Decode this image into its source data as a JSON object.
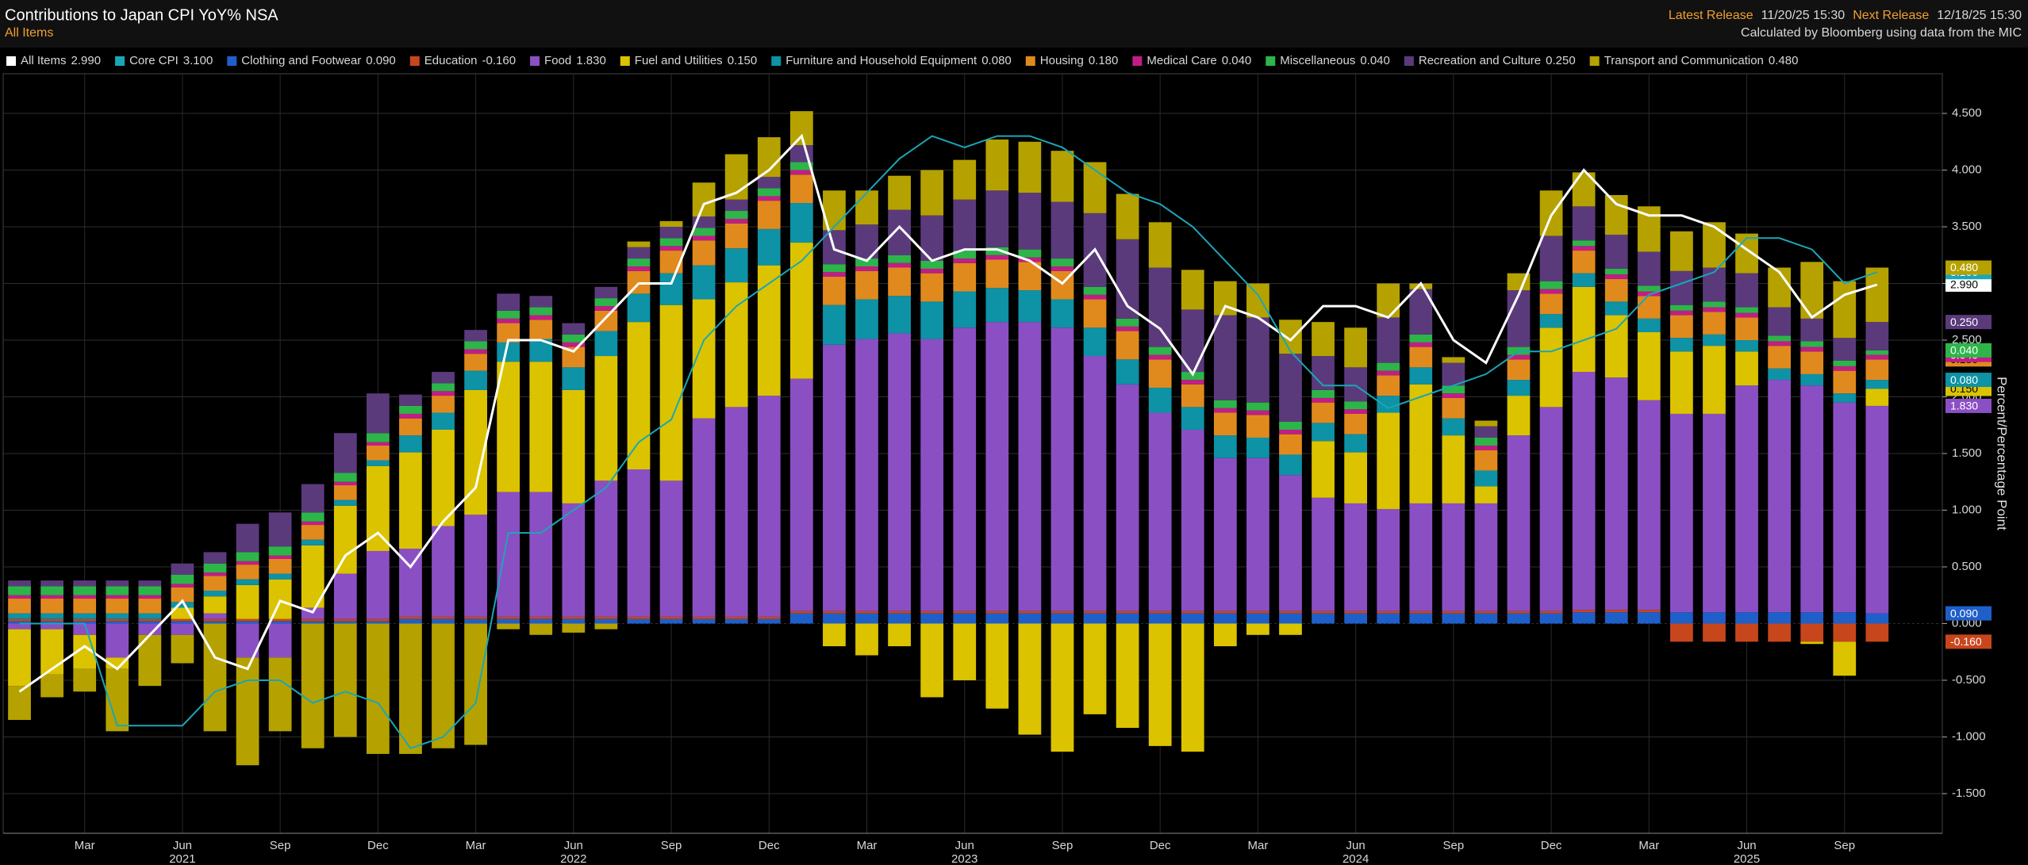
{
  "header": {
    "release_label": "Latest Release",
    "release_date": "11/20/25 15:30",
    "next_label": "Next Release",
    "next_date": "12/18/25 15:30",
    "source": "Calculated by Bloomberg using data from the MIC"
  },
  "chart_data": {
    "type": "stacked_bar",
    "title": "Contributions to Japan CPI YoY% NSA",
    "subtitle": "All Items",
    "y_axis_label": "Percent/Percentage Point",
    "categories": [
      null,
      null,
      "Mar",
      null,
      null,
      "Jun",
      null,
      null,
      "Sep",
      null,
      null,
      "Dec",
      null,
      null,
      "Mar",
      null,
      null,
      "Jun",
      null,
      null,
      "Sep",
      null,
      null,
      "Dec",
      null,
      null,
      "Mar",
      null,
      null,
      "Jun",
      null,
      null,
      "Sep",
      null,
      null,
      "Dec",
      null,
      null,
      "Mar",
      null,
      null,
      "Jun",
      null,
      null,
      "Sep",
      null,
      null,
      "Dec",
      null,
      null,
      "Mar",
      null,
      null,
      "Jun",
      null,
      null,
      "Sep",
      null
    ],
    "years": [
      "2021",
      "2022",
      "2023",
      "2024",
      "2025"
    ],
    "ylim": [
      -1.85,
      4.85
    ],
    "yticks": [
      {
        "value": -1.5,
        "label": "-1.500"
      },
      {
        "value": -1,
        "label": "-1.000"
      },
      {
        "value": -0.5,
        "label": "-0.500"
      },
      {
        "value": 0,
        "label": "0.000"
      },
      {
        "value": 0.5,
        "label": "0.500"
      },
      {
        "value": 1,
        "label": "1.000"
      },
      {
        "value": 1.5,
        "label": "1.500"
      },
      {
        "value": 2,
        "label": "2.000"
      },
      {
        "value": 2.5,
        "label": "2.500"
      },
      {
        "value": 3,
        "label": "3.000"
      },
      {
        "value": 3.5,
        "label": "3.500"
      },
      {
        "value": 4,
        "label": "4.000"
      },
      {
        "value": 4.5,
        "label": "4.500"
      }
    ],
    "grid": true,
    "series": [
      {
        "name": "All Items",
        "type": "line",
        "color": "#ffffff",
        "last_label": "2.990",
        "values": [
          -0.6,
          -0.4,
          -0.2,
          -0.4,
          -0.1,
          0.2,
          -0.3,
          -0.4,
          0.2,
          0.1,
          0.6,
          0.8,
          0.5,
          0.9,
          1.2,
          2.5,
          2.5,
          2.4,
          2.7,
          3.0,
          3.0,
          3.7,
          3.8,
          4.0,
          4.3,
          3.3,
          3.2,
          3.5,
          3.2,
          3.3,
          3.3,
          3.2,
          3.0,
          3.3,
          2.8,
          2.6,
          2.2,
          2.8,
          2.7,
          2.5,
          2.8,
          2.8,
          2.7,
          3.0,
          2.5,
          2.3,
          2.9,
          3.6,
          4.0,
          3.7,
          3.6,
          3.6,
          3.5,
          3.3,
          3.1,
          2.7,
          2.9,
          2.99
        ]
      },
      {
        "name": "Core CPI",
        "type": "line",
        "color": "#1aa6b7",
        "last_label": "3.100",
        "values": [
          0.0,
          0.0,
          0.0,
          -0.9,
          -0.9,
          -0.9,
          -0.6,
          -0.5,
          -0.5,
          -0.7,
          -0.6,
          -0.7,
          -1.1,
          -1.0,
          -0.7,
          0.8,
          0.8,
          1.0,
          1.2,
          1.6,
          1.8,
          2.5,
          2.8,
          3.0,
          3.2,
          3.5,
          3.8,
          4.1,
          4.3,
          4.2,
          4.3,
          4.3,
          4.2,
          4.0,
          3.8,
          3.7,
          3.5,
          3.2,
          2.9,
          2.4,
          2.1,
          2.1,
          1.9,
          2.0,
          2.1,
          2.2,
          2.4,
          2.4,
          2.5,
          2.6,
          2.9,
          3.0,
          3.1,
          3.4,
          3.4,
          3.3,
          3.0,
          3.1
        ]
      },
      {
        "name": "Clothing and Footwear",
        "color": "#1f5fc9",
        "last_label": "0.090",
        "values": [
          0.02,
          0.02,
          0.02,
          0.02,
          0.02,
          0.02,
          0.02,
          0.02,
          0.02,
          0.02,
          0.02,
          0.02,
          0.04,
          0.04,
          0.04,
          0.04,
          0.04,
          0.04,
          0.04,
          0.04,
          0.04,
          0.04,
          0.04,
          0.04,
          0.09,
          0.09,
          0.09,
          0.09,
          0.09,
          0.09,
          0.09,
          0.09,
          0.09,
          0.09,
          0.09,
          0.09,
          0.09,
          0.09,
          0.09,
          0.09,
          0.09,
          0.09,
          0.09,
          0.09,
          0.09,
          0.09,
          0.09,
          0.09,
          0.1,
          0.1,
          0.1,
          0.1,
          0.1,
          0.1,
          0.1,
          0.1,
          0.1,
          0.09
        ]
      },
      {
        "name": "Education",
        "color": "#c8461c",
        "last_label": "-0.160",
        "values": [
          0.02,
          0.02,
          0.02,
          0.02,
          0.02,
          0.02,
          0.02,
          0.02,
          0.02,
          0.02,
          0.02,
          0.02,
          0.02,
          0.02,
          0.02,
          0.02,
          0.02,
          0.02,
          0.02,
          0.02,
          0.02,
          0.02,
          0.02,
          0.02,
          0.02,
          0.02,
          0.02,
          0.02,
          0.02,
          0.02,
          0.02,
          0.02,
          0.02,
          0.02,
          0.02,
          0.02,
          0.02,
          0.02,
          0.02,
          0.02,
          0.02,
          0.02,
          0.02,
          0.02,
          0.02,
          0.02,
          0.02,
          0.02,
          0.02,
          0.02,
          0.02,
          -0.16,
          -0.16,
          -0.16,
          -0.16,
          -0.16,
          -0.16,
          -0.16
        ]
      },
      {
        "name": "Food",
        "color": "#8b4fc4",
        "last_label": "1.830",
        "values": [
          -0.05,
          -0.05,
          -0.1,
          -0.3,
          -0.1,
          -0.1,
          0.05,
          -0.3,
          -0.3,
          0.1,
          0.4,
          0.6,
          0.6,
          0.8,
          0.9,
          1.1,
          1.1,
          1.0,
          1.2,
          1.3,
          1.2,
          1.75,
          1.85,
          1.95,
          2.05,
          2.35,
          2.4,
          2.45,
          2.4,
          2.5,
          2.55,
          2.55,
          2.5,
          2.25,
          2.0,
          1.75,
          1.6,
          1.35,
          1.35,
          1.2,
          1.0,
          0.95,
          0.9,
          0.95,
          0.95,
          0.95,
          1.55,
          1.8,
          2.1,
          2.05,
          1.85,
          1.75,
          1.75,
          2.0,
          2.05,
          2.0,
          1.85,
          1.83
        ]
      },
      {
        "name": "Fuel and Utilities",
        "color": "#dcc300",
        "last_label": "0.150",
        "values": [
          -0.5,
          -0.4,
          -0.3,
          -0.1,
          0.0,
          0.1,
          0.15,
          0.3,
          0.35,
          0.55,
          0.6,
          0.75,
          0.85,
          0.85,
          1.1,
          1.15,
          1.15,
          1.0,
          1.1,
          1.3,
          1.55,
          1.05,
          1.1,
          1.15,
          1.2,
          -0.2,
          -0.28,
          -0.2,
          -0.65,
          -0.5,
          -0.75,
          -0.98,
          -1.13,
          -0.8,
          -0.92,
          -1.08,
          -1.13,
          -0.2,
          -0.1,
          -0.1,
          0.5,
          0.45,
          0.85,
          1.05,
          0.6,
          0.15,
          0.35,
          0.7,
          0.75,
          0.55,
          0.6,
          0.55,
          0.6,
          0.3,
          0.0,
          -0.02,
          -0.3,
          0.15
        ]
      },
      {
        "name": "Furniture and Household Equipment",
        "color": "#0d92a6",
        "last_label": "0.080",
        "values": [
          0.05,
          0.05,
          0.05,
          0.05,
          0.05,
          0.05,
          0.05,
          0.05,
          0.05,
          0.05,
          0.05,
          0.05,
          0.15,
          0.15,
          0.17,
          0.17,
          0.2,
          0.2,
          0.22,
          0.25,
          0.28,
          0.3,
          0.3,
          0.32,
          0.35,
          0.35,
          0.35,
          0.33,
          0.33,
          0.32,
          0.3,
          0.28,
          0.25,
          0.25,
          0.22,
          0.22,
          0.2,
          0.2,
          0.18,
          0.18,
          0.16,
          0.16,
          0.15,
          0.15,
          0.15,
          0.14,
          0.14,
          0.12,
          0.12,
          0.12,
          0.12,
          0.12,
          0.1,
          0.1,
          0.1,
          0.1,
          0.08,
          0.08
        ]
      },
      {
        "name": "Housing",
        "color": "#e08a1e",
        "last_label": "0.180",
        "values": [
          0.13,
          0.13,
          0.13,
          0.13,
          0.13,
          0.13,
          0.13,
          0.13,
          0.13,
          0.13,
          0.13,
          0.13,
          0.15,
          0.15,
          0.15,
          0.17,
          0.17,
          0.18,
          0.18,
          0.2,
          0.2,
          0.22,
          0.22,
          0.25,
          0.25,
          0.25,
          0.25,
          0.25,
          0.25,
          0.25,
          0.25,
          0.25,
          0.25,
          0.25,
          0.25,
          0.25,
          0.2,
          0.2,
          0.2,
          0.18,
          0.18,
          0.18,
          0.18,
          0.18,
          0.18,
          0.18,
          0.18,
          0.18,
          0.2,
          0.2,
          0.2,
          0.2,
          0.2,
          0.2,
          0.2,
          0.2,
          0.2,
          0.18
        ]
      },
      {
        "name": "Medical Care",
        "color": "#c21d86",
        "last_label": "0.040",
        "values": [
          0.03,
          0.03,
          0.03,
          0.03,
          0.03,
          0.03,
          0.03,
          0.03,
          0.03,
          0.03,
          0.03,
          0.03,
          0.04,
          0.04,
          0.04,
          0.04,
          0.04,
          0.04,
          0.04,
          0.04,
          0.04,
          0.04,
          0.04,
          0.04,
          0.04,
          0.04,
          0.04,
          0.04,
          0.04,
          0.04,
          0.04,
          0.04,
          0.04,
          0.04,
          0.04,
          0.04,
          0.04,
          0.04,
          0.04,
          0.04,
          0.04,
          0.04,
          0.04,
          0.04,
          0.04,
          0.04,
          0.04,
          0.04,
          0.04,
          0.04,
          0.04,
          0.04,
          0.04,
          0.04,
          0.04,
          0.04,
          0.04,
          0.04
        ]
      },
      {
        "name": "Miscellaneous",
        "color": "#2db54a",
        "last_label": "0.040",
        "values": [
          0.08,
          0.08,
          0.08,
          0.08,
          0.08,
          0.08,
          0.08,
          0.08,
          0.08,
          0.08,
          0.08,
          0.08,
          0.07,
          0.07,
          0.07,
          0.07,
          0.07,
          0.07,
          0.07,
          0.07,
          0.07,
          0.07,
          0.07,
          0.07,
          0.07,
          0.07,
          0.07,
          0.07,
          0.07,
          0.07,
          0.07,
          0.07,
          0.07,
          0.07,
          0.07,
          0.07,
          0.07,
          0.07,
          0.07,
          0.07,
          0.07,
          0.07,
          0.07,
          0.07,
          0.07,
          0.07,
          0.07,
          0.07,
          0.05,
          0.05,
          0.05,
          0.05,
          0.05,
          0.05,
          0.05,
          0.05,
          0.05,
          0.04
        ]
      },
      {
        "name": "Recreation and Culture",
        "color": "#5b3a7c",
        "last_label": "0.250",
        "values": [
          0.05,
          0.05,
          0.05,
          0.05,
          0.05,
          0.1,
          0.1,
          0.25,
          0.3,
          0.25,
          0.35,
          0.35,
          0.1,
          0.1,
          0.1,
          0.15,
          0.1,
          0.1,
          0.1,
          0.1,
          0.1,
          0.1,
          0.1,
          0.1,
          0.15,
          0.3,
          0.3,
          0.4,
          0.4,
          0.45,
          0.5,
          0.5,
          0.5,
          0.65,
          0.7,
          0.7,
          0.55,
          0.75,
          0.75,
          0.6,
          0.3,
          0.3,
          0.4,
          0.4,
          0.2,
          0.1,
          0.5,
          0.4,
          0.3,
          0.3,
          0.3,
          0.3,
          0.3,
          0.3,
          0.25,
          0.2,
          0.2,
          0.25
        ]
      },
      {
        "name": "Transport and Communication",
        "color": "#b5a200",
        "last_label": "0.480",
        "values": [
          -0.3,
          -0.2,
          -0.2,
          -0.55,
          -0.45,
          -0.25,
          -0.95,
          -0.95,
          -0.65,
          -1.1,
          -1.0,
          -1.15,
          -1.15,
          -1.1,
          -1.07,
          -0.05,
          -0.1,
          -0.08,
          -0.05,
          0.05,
          0.05,
          0.3,
          0.4,
          0.35,
          0.3,
          0.35,
          0.3,
          0.3,
          0.4,
          0.35,
          0.45,
          0.45,
          0.45,
          0.45,
          0.4,
          0.4,
          0.35,
          0.3,
          0.3,
          0.3,
          0.3,
          0.35,
          0.3,
          0.05,
          0.05,
          0.05,
          0.15,
          0.4,
          0.3,
          0.35,
          0.4,
          0.35,
          0.4,
          0.35,
          0.35,
          0.5,
          0.5,
          0.48
        ]
      }
    ]
  }
}
